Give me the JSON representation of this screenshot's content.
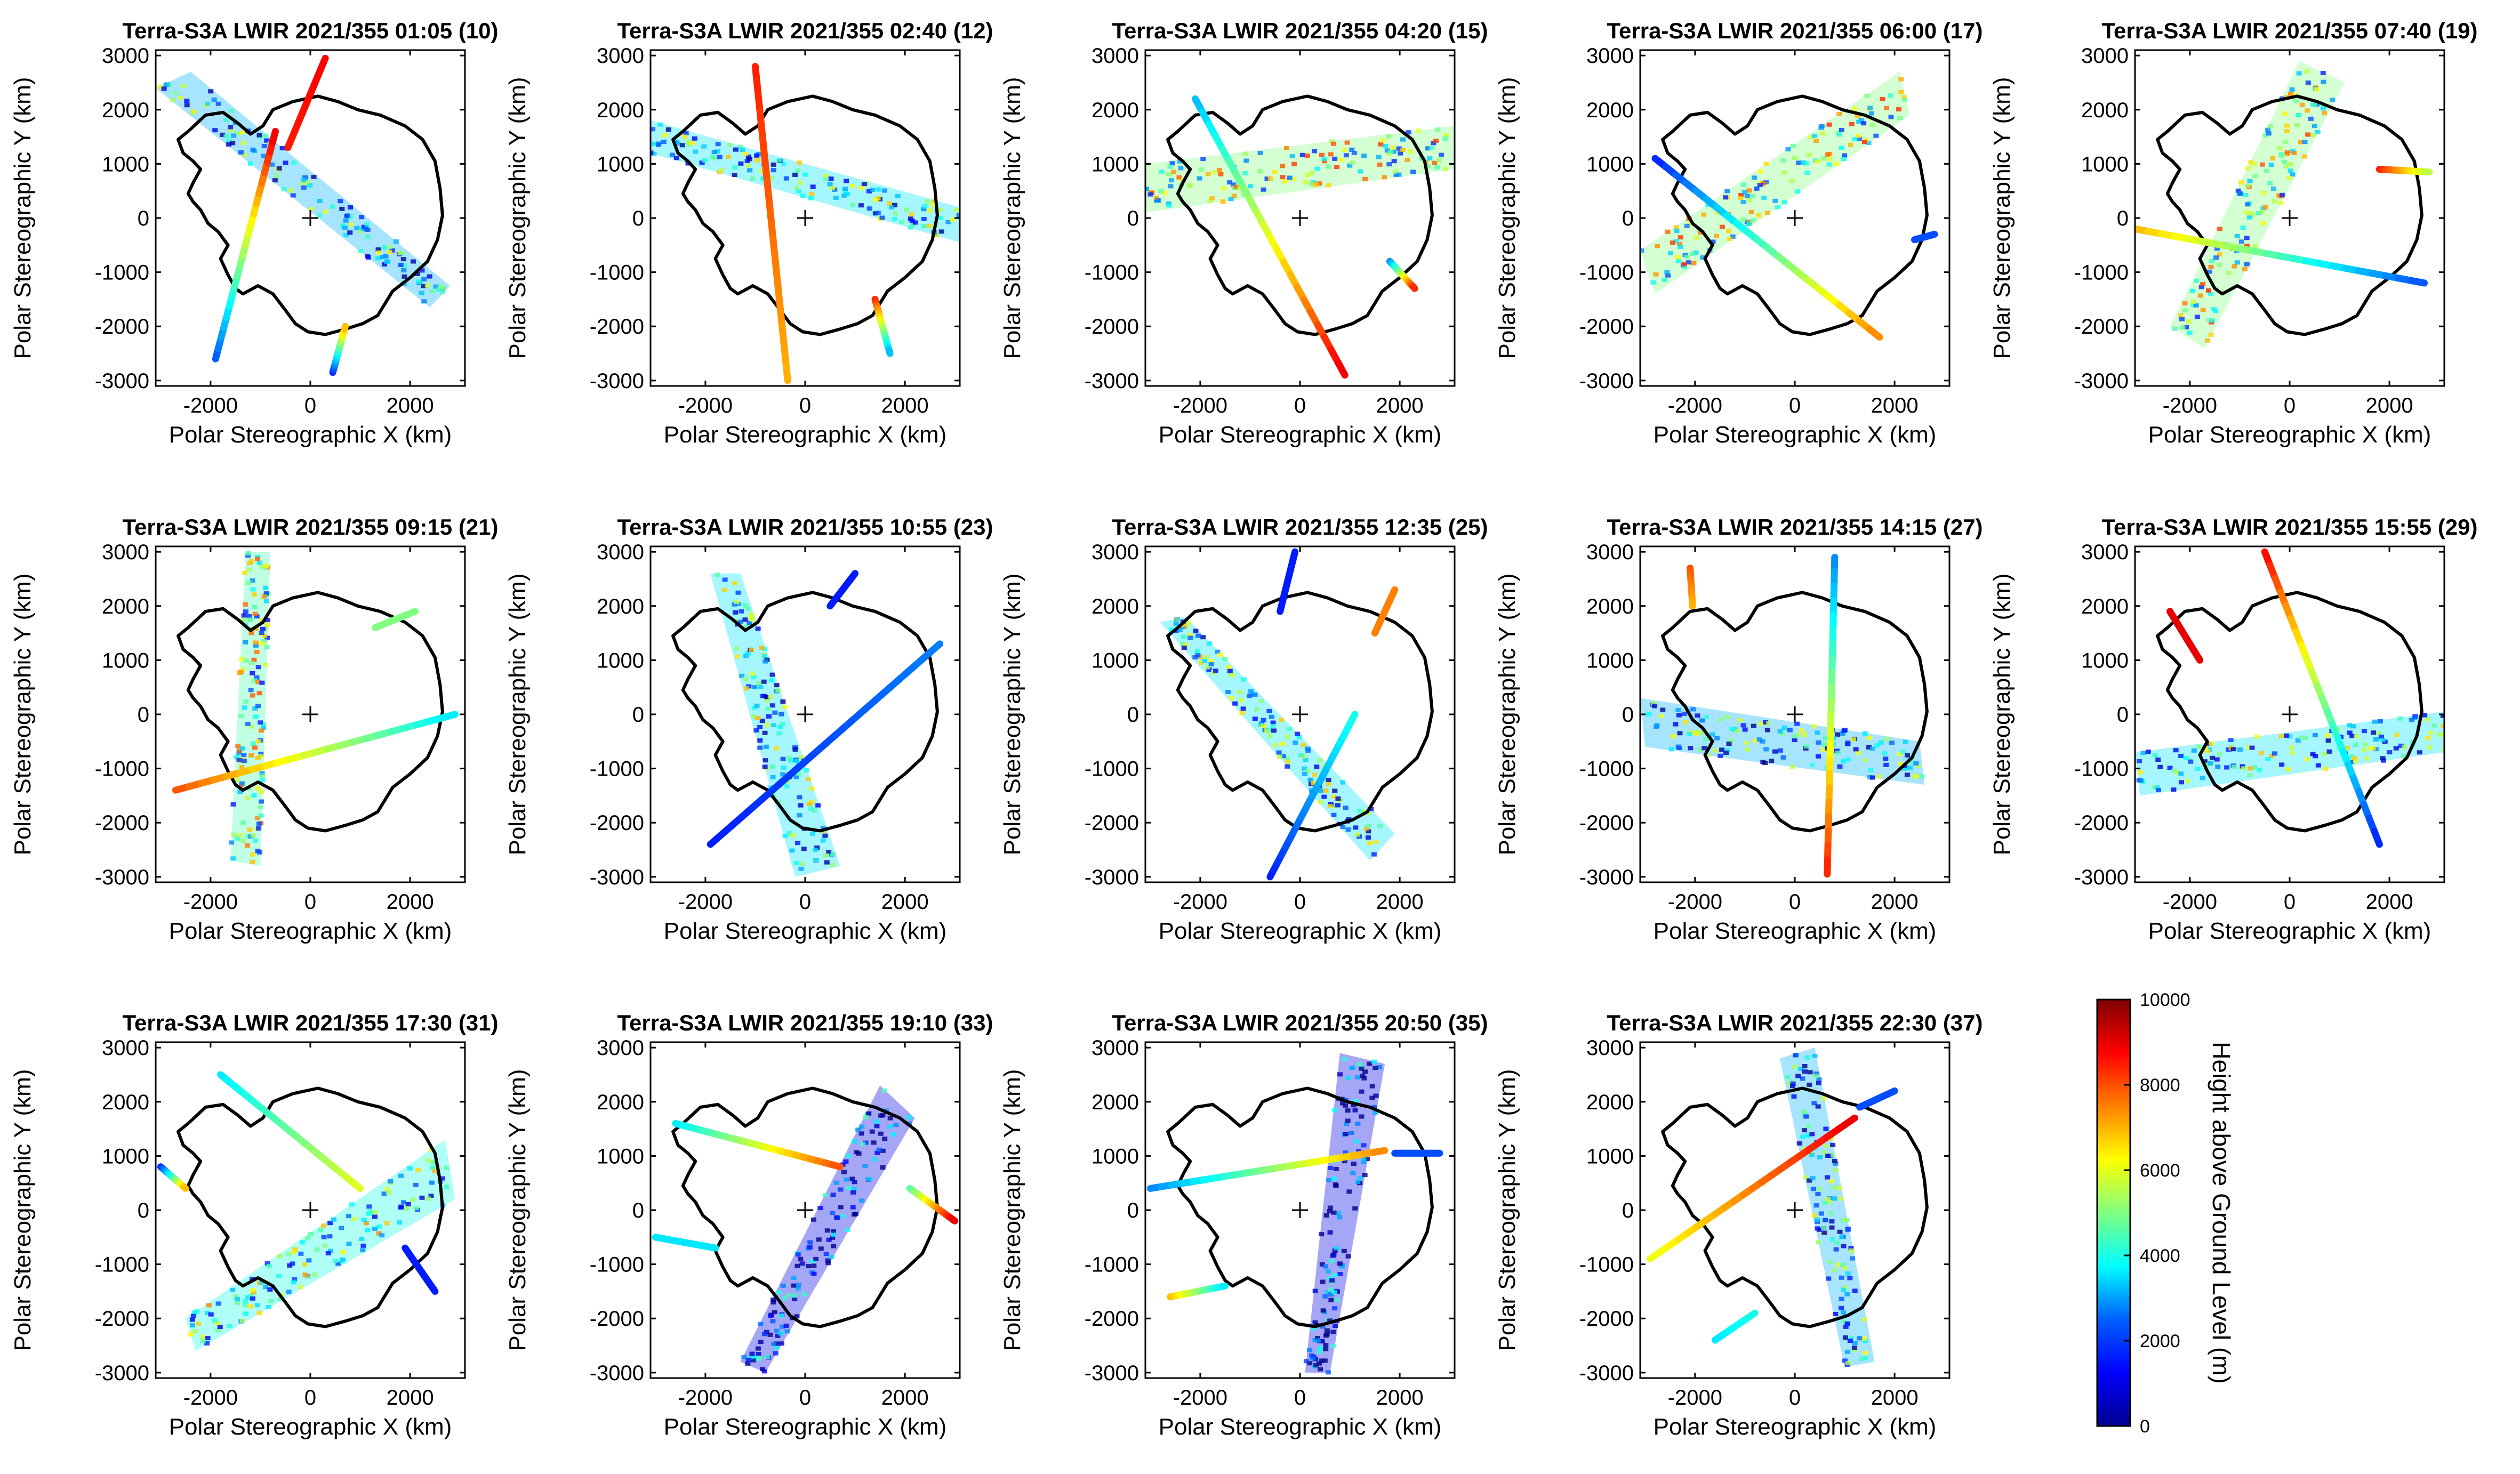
{
  "chart_data": {
    "type": "scatter",
    "figure_description_source": "Antarctic polar stereographic map panels of Terra-S3A LWIR cloud heights",
    "xlabel": "Polar Stereographic X (km)",
    "ylabel": "Polar Stereographic Y (km)",
    "xlim": [
      -3100,
      3100
    ],
    "ylim": [
      -3100,
      3100
    ],
    "xticks": [
      -2000,
      0,
      2000
    ],
    "yticks": [
      3000,
      2000,
      1000,
      0,
      -1000,
      -2000,
      -3000
    ],
    "grid": false,
    "pole_marker": "+",
    "colorbar": {
      "label": "Height above Ground Level (m)",
      "min": 0,
      "max": 10000,
      "ticks": [
        0,
        2000,
        4000,
        6000,
        8000,
        10000
      ],
      "colormap": [
        "#00008f",
        "#0000ff",
        "#0080ff",
        "#00ffff",
        "#80ff80",
        "#ffff00",
        "#ff8000",
        "#ff0000",
        "#800000"
      ]
    },
    "coastline": [
      [
        -2450,
        1600
      ],
      [
        -2100,
        1900
      ],
      [
        -1750,
        1950
      ],
      [
        -1450,
        1750
      ],
      [
        -1200,
        1550
      ],
      [
        -950,
        1700
      ],
      [
        -750,
        2000
      ],
      [
        -350,
        2150
      ],
      [
        150,
        2250
      ],
      [
        550,
        2150
      ],
      [
        950,
        2000
      ],
      [
        1400,
        1900
      ],
      [
        1900,
        1700
      ],
      [
        2250,
        1450
      ],
      [
        2500,
        1050
      ],
      [
        2600,
        550
      ],
      [
        2650,
        50
      ],
      [
        2550,
        -400
      ],
      [
        2350,
        -800
      ],
      [
        2000,
        -1100
      ],
      [
        1650,
        -1350
      ],
      [
        1350,
        -1800
      ],
      [
        1050,
        -1950
      ],
      [
        700,
        -2050
      ],
      [
        300,
        -2150
      ],
      [
        -50,
        -2100
      ],
      [
        -300,
        -1950
      ],
      [
        -500,
        -1700
      ],
      [
        -750,
        -1400
      ],
      [
        -1050,
        -1250
      ],
      [
        -1350,
        -1400
      ],
      [
        -1500,
        -1300
      ],
      [
        -1650,
        -1050
      ],
      [
        -1800,
        -750
      ],
      [
        -1650,
        -500
      ],
      [
        -1850,
        -250
      ],
      [
        -2050,
        -100
      ],
      [
        -2200,
        150
      ],
      [
        -2350,
        300
      ],
      [
        -2450,
        450
      ],
      [
        -2350,
        650
      ],
      [
        -2200,
        900
      ],
      [
        -2350,
        1050
      ],
      [
        -2550,
        1200
      ],
      [
        -2650,
        1450
      ],
      [
        -2450,
        1600
      ]
    ],
    "panels": [
      {
        "title": "Terra-S3A LWIR 2021/355 01:05 (10)",
        "swath": [
          [
            -3100,
            2400
          ],
          [
            -2400,
            2700
          ],
          [
            2800,
            -1250
          ],
          [
            2400,
            -1650
          ]
        ],
        "swath_value": 3000,
        "lines": [
          {
            "p1": [
              -1900,
              -2600
            ],
            "p2": [
              -700,
              1600
            ],
            "v1": 2000,
            "v2": 9000
          },
          {
            "p1": [
              -450,
              1300
            ],
            "p2": [
              300,
              2950
            ],
            "v1": 8500,
            "v2": 8800
          },
          {
            "p1": [
              450,
              -2850
            ],
            "p2": [
              700,
              -2000
            ],
            "v1": 1500,
            "v2": 7000
          }
        ]
      },
      {
        "title": "Terra-S3A LWIR 2021/355 02:40 (12)",
        "swath": [
          [
            -3100,
            1200
          ],
          [
            -3100,
            1800
          ],
          [
            3100,
            200
          ],
          [
            3100,
            -450
          ]
        ],
        "swath_value": 3500,
        "lines": [
          {
            "p1": [
              -1000,
              2800
            ],
            "p2": [
              -350,
              -3000
            ],
            "v1": 8500,
            "v2": 7000
          },
          {
            "p1": [
              1400,
              -1500
            ],
            "p2": [
              1700,
              -2500
            ],
            "v1": 8500,
            "v2": 3000
          }
        ]
      },
      {
        "title": "Terra-S3A LWIR 2021/355 04:20 (15)",
        "swath": [
          [
            -3100,
            1000
          ],
          [
            -3100,
            100
          ],
          [
            3100,
            900
          ],
          [
            3100,
            1700
          ]
        ],
        "swath_value": 5000,
        "lines": [
          {
            "p1": [
              -2100,
              2200
            ],
            "p2": [
              900,
              -2900
            ],
            "v1": 3000,
            "v2": 9000
          },
          {
            "p1": [
              1800,
              -800
            ],
            "p2": [
              2300,
              -1300
            ],
            "v1": 2500,
            "v2": 8500
          }
        ]
      },
      {
        "title": "Terra-S3A LWIR 2021/355 06:00 (17)",
        "swath": [
          [
            -3100,
            -600
          ],
          [
            -2800,
            -1400
          ],
          [
            2300,
            1900
          ],
          [
            2100,
            2700
          ]
        ],
        "swath_value": 5000,
        "lines": [
          {
            "p1": [
              -2800,
              1100
            ],
            "p2": [
              1700,
              -2200
            ],
            "v1": 1500,
            "v2": 7500
          },
          {
            "p1": [
              2400,
              -400
            ],
            "p2": [
              2800,
              -300
            ],
            "v1": 2000,
            "v2": 2000
          }
        ]
      },
      {
        "title": "Terra-S3A LWIR 2021/355 07:40 (19)",
        "swath": [
          [
            -2400,
            -2000
          ],
          [
            -1700,
            -2400
          ],
          [
            1100,
            2500
          ],
          [
            200,
            2900
          ]
        ],
        "swath_value": 5000,
        "lines": [
          {
            "p1": [
              -3100,
              -200
            ],
            "p2": [
              2700,
              -1200
            ],
            "v1": 7000,
            "v2": 2000
          },
          {
            "p1": [
              1800,
              900
            ],
            "p2": [
              2800,
              850
            ],
            "v1": 8500,
            "v2": 5500
          }
        ]
      },
      {
        "title": "Terra-S3A LWIR 2021/355 09:15 (21)",
        "swath": [
          [
            -1600,
            -2700
          ],
          [
            -1000,
            -2800
          ],
          [
            -800,
            3000
          ],
          [
            -1300,
            3000
          ]
        ],
        "swath_value": 4500,
        "lines": [
          {
            "p1": [
              -2700,
              -1400
            ],
            "p2": [
              2900,
              0
            ],
            "v1": 8000,
            "v2": 3500
          },
          {
            "p1": [
              1300,
              1600
            ],
            "p2": [
              2100,
              1900
            ],
            "v1": 5000,
            "v2": 5000
          }
        ]
      },
      {
        "title": "Terra-S3A LWIR 2021/355 10:55 (23)",
        "swath": [
          [
            -1900,
            2600
          ],
          [
            -1300,
            2600
          ],
          [
            700,
            -2800
          ],
          [
            -200,
            -3000
          ]
        ],
        "swath_value": 3500,
        "lines": [
          {
            "p1": [
              -1900,
              -2400
            ],
            "p2": [
              2700,
              1300
            ],
            "v1": 1500,
            "v2": 2500
          },
          {
            "p1": [
              500,
              2000
            ],
            "p2": [
              1000,
              2600
            ],
            "v1": 1500,
            "v2": 1500
          }
        ]
      },
      {
        "title": "Terra-S3A LWIR 2021/355 12:35 (25)",
        "swath": [
          [
            -2800,
            1700
          ],
          [
            -2300,
            1800
          ],
          [
            1900,
            -2200
          ],
          [
            1400,
            -2700
          ]
        ],
        "swath_value": 3500,
        "lines": [
          {
            "p1": [
              -600,
              -3000
            ],
            "p2": [
              1100,
              0
            ],
            "v1": 1500,
            "v2": 4000
          },
          {
            "p1": [
              -400,
              1900
            ],
            "p2": [
              -100,
              3000
            ],
            "v1": 1500,
            "v2": 1500
          },
          {
            "p1": [
              1500,
              1500
            ],
            "p2": [
              1900,
              2300
            ],
            "v1": 7500,
            "v2": 7500
          }
        ]
      },
      {
        "title": "Terra-S3A LWIR 2021/355 14:15 (27)",
        "swath": [
          [
            -3100,
            300
          ],
          [
            -3000,
            -600
          ],
          [
            2600,
            -1300
          ],
          [
            2500,
            -500
          ]
        ],
        "swath_value": 3000,
        "lines": [
          {
            "p1": [
              800,
              2900
            ],
            "p2": [
              650,
              -2950
            ],
            "v1": 2500,
            "v2": 8500
          },
          {
            "p1": [
              -2100,
              2700
            ],
            "p2": [
              -2050,
              2000
            ],
            "v1": 8000,
            "v2": 7000
          }
        ]
      },
      {
        "title": "Terra-S3A LWIR 2021/355 15:55 (29)",
        "swath": [
          [
            -3100,
            -700
          ],
          [
            -3000,
            -1500
          ],
          [
            3100,
            -700
          ],
          [
            3100,
            50
          ]
        ],
        "swath_value": 3500,
        "lines": [
          {
            "p1": [
              -2400,
              1900
            ],
            "p2": [
              -1800,
              1000
            ],
            "v1": 9000,
            "v2": 9000
          },
          {
            "p1": [
              -500,
              3000
            ],
            "p2": [
              1800,
              -2400
            ],
            "v1": 8800,
            "v2": 1500
          }
        ]
      },
      {
        "title": "Terra-S3A LWIR 2021/355 17:30 (31)",
        "swath": [
          [
            -2500,
            -2000
          ],
          [
            -2300,
            -2600
          ],
          [
            2900,
            200
          ],
          [
            2700,
            1300
          ]
        ],
        "swath_value": 4000,
        "lines": [
          {
            "p1": [
              -1800,
              2500
            ],
            "p2": [
              1000,
              400
            ],
            "v1": 3500,
            "v2": 6000
          },
          {
            "p1": [
              -3000,
              800
            ],
            "p2": [
              -2500,
              400
            ],
            "v1": 1500,
            "v2": 7000
          },
          {
            "p1": [
              1900,
              -700
            ],
            "p2": [
              2500,
              -1500
            ],
            "v1": 1500,
            "v2": 1500
          }
        ]
      },
      {
        "title": "Terra-S3A LWIR 2021/355 19:10 (33)",
        "swath": [
          [
            -1300,
            -2800
          ],
          [
            -800,
            -3000
          ],
          [
            2200,
            1700
          ],
          [
            1500,
            2300
          ]
        ],
        "swath_value": 1000,
        "lines": [
          {
            "p1": [
              -2600,
              1600
            ],
            "p2": [
              700,
              800
            ],
            "v1": 3500,
            "v2": 8000
          },
          {
            "p1": [
              -3000,
              -500
            ],
            "p2": [
              -1800,
              -700
            ],
            "v1": 3500,
            "v2": 3500
          },
          {
            "p1": [
              2100,
              400
            ],
            "p2": [
              3000,
              -200
            ],
            "v1": 4500,
            "v2": 9000
          }
        ]
      },
      {
        "title": "Terra-S3A LWIR 2021/355 20:50 (35)",
        "swath": [
          [
            100,
            -3000
          ],
          [
            600,
            -3000
          ],
          [
            1700,
            2700
          ],
          [
            800,
            2900
          ]
        ],
        "swath_value": 1000,
        "lines": [
          {
            "p1": [
              -3000,
              400
            ],
            "p2": [
              1700,
              1100
            ],
            "v1": 2500,
            "v2": 7500
          },
          {
            "p1": [
              -2600,
              -1600
            ],
            "p2": [
              -1500,
              -1400
            ],
            "v1": 7000,
            "v2": 3500
          },
          {
            "p1": [
              1900,
              1050
            ],
            "p2": [
              2800,
              1050
            ],
            "v1": 2000,
            "v2": 2000
          }
        ]
      },
      {
        "title": "Terra-S3A LWIR 2021/355 22:30 (37)",
        "swath": [
          [
            -300,
            2800
          ],
          [
            400,
            3000
          ],
          [
            1600,
            -2800
          ],
          [
            1000,
            -2900
          ]
        ],
        "swath_value": 3000,
        "lines": [
          {
            "p1": [
              -2900,
              -900
            ],
            "p2": [
              1200,
              1700
            ],
            "v1": 6000,
            "v2": 9000
          },
          {
            "p1": [
              -1600,
              -2400
            ],
            "p2": [
              -800,
              -1900
            ],
            "v1": 3500,
            "v2": 4000
          },
          {
            "p1": [
              1300,
              1900
            ],
            "p2": [
              2000,
              2200
            ],
            "v1": 2000,
            "v2": 2000
          }
        ]
      }
    ]
  }
}
